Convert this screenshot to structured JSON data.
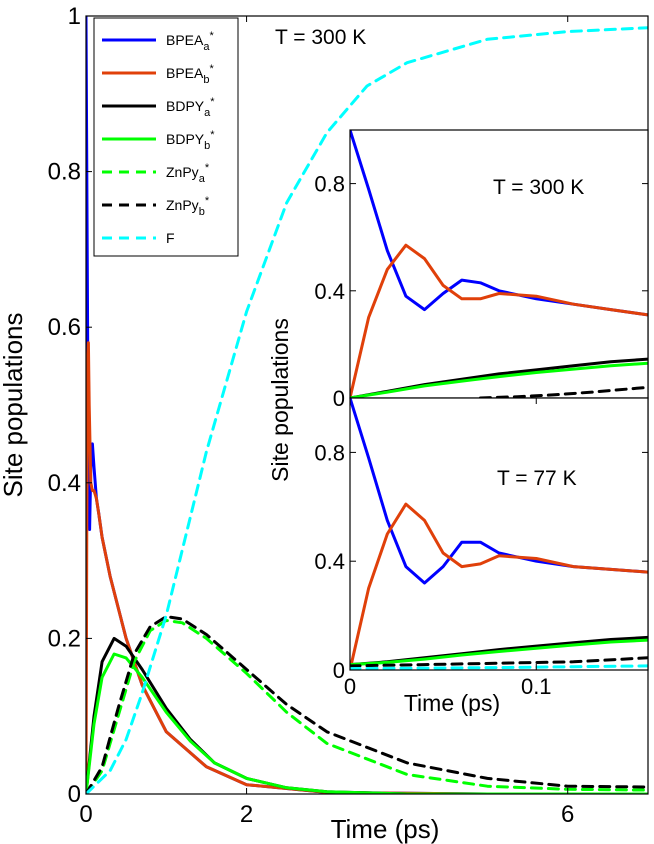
{
  "colors": {
    "BPEA_a": "#0000ff",
    "BPEA_b": "#e0400a",
    "BDPY_a": "#000000",
    "BDPY_b": "#00ff00",
    "ZnPy_a": "#00ff00",
    "ZnPy_b": "#000000",
    "F": "#00ffff"
  },
  "chart_data": [
    {
      "type": "line",
      "title": "",
      "xlabel": "Time (ps)",
      "ylabel": "Site populations",
      "xlim": [
        0,
        7
      ],
      "ylim": [
        0,
        1
      ],
      "xticks": [
        "0",
        "2",
        "6"
      ],
      "yticks": [
        "0",
        "0.2",
        "0.4",
        "0.6",
        "0.8",
        "1"
      ],
      "annotation": "T = 300 K",
      "legend_position": "top-left",
      "legend": [
        {
          "key": "BPEA_a",
          "base": "BPEA",
          "sub": "a",
          "sup": "*",
          "style": "solid"
        },
        {
          "key": "BPEA_b",
          "base": "BPEA",
          "sub": "b",
          "sup": "*",
          "style": "solid"
        },
        {
          "key": "BDPY_a",
          "base": "BDPY",
          "sub": "a",
          "sup": "*",
          "style": "solid"
        },
        {
          "key": "BDPY_b",
          "base": "BDPY",
          "sub": "b",
          "sup": "*",
          "style": "solid"
        },
        {
          "key": "ZnPy_a",
          "base": "ZnPy",
          "sub": "a",
          "sup": "*",
          "style": "dashed"
        },
        {
          "key": "ZnPy_b",
          "base": "ZnPy",
          "sub": "b",
          "sup": "*",
          "style": "dashed"
        },
        {
          "key": "F",
          "base": "F",
          "sub": "",
          "sup": "",
          "style": "dashed"
        }
      ],
      "series": [
        {
          "key": "BPEA_a",
          "x": [
            0,
            0.015,
            0.03,
            0.045,
            0.06,
            0.08,
            0.1,
            0.13,
            0.16,
            0.2,
            0.3,
            0.5,
            0.7,
            1.0,
            1.5,
            2.0,
            3.0,
            5.0,
            7.0
          ],
          "y": [
            1.0,
            0.7,
            0.4,
            0.34,
            0.42,
            0.45,
            0.42,
            0.38,
            0.36,
            0.33,
            0.28,
            0.2,
            0.14,
            0.08,
            0.035,
            0.012,
            0.002,
            0,
            0
          ]
        },
        {
          "key": "BPEA_b",
          "x": [
            0,
            0.01,
            0.02,
            0.03,
            0.04,
            0.06,
            0.08,
            0.1,
            0.13,
            0.16,
            0.2,
            0.3,
            0.5,
            0.7,
            1.0,
            1.5,
            2.0,
            3.0,
            5.0,
            7.0
          ],
          "y": [
            0,
            0.35,
            0.55,
            0.58,
            0.5,
            0.4,
            0.39,
            0.39,
            0.38,
            0.36,
            0.33,
            0.28,
            0.2,
            0.14,
            0.08,
            0.035,
            0.012,
            0.002,
            0,
            0
          ]
        },
        {
          "key": "BDPY_a",
          "x": [
            0,
            0.1,
            0.2,
            0.35,
            0.5,
            0.7,
            1.0,
            1.3,
            1.6,
            2.0,
            2.5,
            3.0,
            4.0,
            5.0,
            7.0
          ],
          "y": [
            0,
            0.1,
            0.17,
            0.2,
            0.19,
            0.16,
            0.11,
            0.07,
            0.04,
            0.02,
            0.008,
            0.003,
            0,
            0,
            0
          ]
        },
        {
          "key": "BDPY_b",
          "x": [
            0,
            0.1,
            0.2,
            0.35,
            0.5,
            0.7,
            1.0,
            1.3,
            1.6,
            2.0,
            2.5,
            3.0,
            4.0,
            5.0,
            7.0
          ],
          "y": [
            0,
            0.09,
            0.15,
            0.18,
            0.175,
            0.15,
            0.105,
            0.068,
            0.04,
            0.02,
            0.008,
            0.003,
            0,
            0,
            0
          ]
        },
        {
          "key": "ZnPy_a",
          "x": [
            0,
            0.2,
            0.4,
            0.6,
            0.8,
            1.0,
            1.2,
            1.5,
            2.0,
            2.5,
            3.0,
            4.0,
            5.0,
            6.0,
            7.0
          ],
          "y": [
            0,
            0.03,
            0.1,
            0.17,
            0.21,
            0.223,
            0.22,
            0.2,
            0.155,
            0.105,
            0.065,
            0.025,
            0.01,
            0.006,
            0.005
          ]
        },
        {
          "key": "ZnPy_b",
          "x": [
            0,
            0.2,
            0.4,
            0.6,
            0.8,
            1.0,
            1.2,
            1.5,
            2.0,
            2.5,
            3.0,
            4.0,
            5.0,
            6.0,
            7.0
          ],
          "y": [
            0,
            0.035,
            0.11,
            0.18,
            0.215,
            0.228,
            0.225,
            0.205,
            0.16,
            0.115,
            0.08,
            0.04,
            0.02,
            0.01,
            0.009
          ]
        },
        {
          "key": "F",
          "x": [
            0,
            0.3,
            0.5,
            0.7,
            1.0,
            1.5,
            2.0,
            2.5,
            3.0,
            3.5,
            4.0,
            5.0,
            6.0,
            7.0
          ],
          "y": [
            0,
            0.03,
            0.07,
            0.13,
            0.23,
            0.44,
            0.62,
            0.76,
            0.85,
            0.91,
            0.94,
            0.97,
            0.98,
            0.985
          ]
        }
      ]
    },
    {
      "type": "line",
      "title": "",
      "xlabel": "",
      "ylabel": "",
      "xlim": [
        0,
        0.16
      ],
      "ylim": [
        0,
        1.0
      ],
      "xticks": [],
      "yticks": [
        "0",
        "0.4",
        "0.8"
      ],
      "annotation": "T = 300 K",
      "series": [
        {
          "key": "BPEA_a",
          "x": [
            0,
            0.01,
            0.02,
            0.03,
            0.04,
            0.05,
            0.06,
            0.07,
            0.08,
            0.1,
            0.12,
            0.14,
            0.16
          ],
          "y": [
            1.0,
            0.78,
            0.55,
            0.38,
            0.33,
            0.39,
            0.44,
            0.43,
            0.4,
            0.37,
            0.35,
            0.33,
            0.31
          ]
        },
        {
          "key": "BPEA_b",
          "x": [
            0,
            0.01,
            0.02,
            0.03,
            0.04,
            0.05,
            0.06,
            0.07,
            0.08,
            0.1,
            0.12,
            0.14,
            0.16
          ],
          "y": [
            0,
            0.3,
            0.48,
            0.57,
            0.52,
            0.42,
            0.37,
            0.37,
            0.39,
            0.38,
            0.35,
            0.33,
            0.31
          ]
        },
        {
          "key": "BDPY_a",
          "x": [
            0,
            0.02,
            0.04,
            0.06,
            0.08,
            0.1,
            0.12,
            0.14,
            0.16
          ],
          "y": [
            0,
            0.025,
            0.05,
            0.07,
            0.09,
            0.105,
            0.12,
            0.135,
            0.145
          ]
        },
        {
          "key": "BDPY_b",
          "x": [
            0,
            0.02,
            0.04,
            0.06,
            0.08,
            0.1,
            0.12,
            0.14,
            0.16
          ],
          "y": [
            0,
            0.022,
            0.045,
            0.063,
            0.08,
            0.095,
            0.108,
            0.12,
            0.13
          ]
        },
        {
          "key": "ZnPy_b",
          "x": [
            0.07,
            0.09,
            0.11,
            0.13,
            0.15,
            0.16
          ],
          "y": [
            0,
            0.005,
            0.012,
            0.022,
            0.034,
            0.04
          ]
        }
      ]
    },
    {
      "type": "line",
      "title": "",
      "xlabel": "Time (ps)",
      "ylabel": "",
      "xlim": [
        0,
        0.16
      ],
      "ylim": [
        0,
        1.0
      ],
      "xticks": [
        "0",
        "0.1"
      ],
      "yticks": [
        "0",
        "0.4",
        "0.8"
      ],
      "annotation": "T = 77 K",
      "series": [
        {
          "key": "BPEA_a",
          "x": [
            0,
            0.01,
            0.02,
            0.03,
            0.04,
            0.05,
            0.06,
            0.07,
            0.08,
            0.1,
            0.12,
            0.14,
            0.16
          ],
          "y": [
            1.0,
            0.78,
            0.55,
            0.38,
            0.32,
            0.38,
            0.47,
            0.47,
            0.43,
            0.4,
            0.38,
            0.37,
            0.36
          ]
        },
        {
          "key": "BPEA_b",
          "x": [
            0,
            0.01,
            0.02,
            0.03,
            0.04,
            0.05,
            0.06,
            0.07,
            0.08,
            0.1,
            0.12,
            0.14,
            0.16
          ],
          "y": [
            0,
            0.3,
            0.5,
            0.61,
            0.55,
            0.43,
            0.38,
            0.39,
            0.42,
            0.41,
            0.38,
            0.37,
            0.36
          ]
        },
        {
          "key": "BDPY_a",
          "x": [
            0,
            0.02,
            0.04,
            0.06,
            0.08,
            0.1,
            0.12,
            0.14,
            0.16
          ],
          "y": [
            0.02,
            0.03,
            0.045,
            0.06,
            0.075,
            0.088,
            0.1,
            0.112,
            0.12
          ]
        },
        {
          "key": "BDPY_b",
          "x": [
            0,
            0.02,
            0.04,
            0.06,
            0.08,
            0.1,
            0.12,
            0.14,
            0.16
          ],
          "y": [
            0.02,
            0.028,
            0.04,
            0.055,
            0.068,
            0.08,
            0.092,
            0.103,
            0.11
          ]
        },
        {
          "key": "ZnPy_b",
          "x": [
            0,
            0.04,
            0.08,
            0.12,
            0.16
          ],
          "y": [
            0.015,
            0.02,
            0.025,
            0.03,
            0.045
          ]
        },
        {
          "key": "F",
          "x": [
            0,
            0.04,
            0.08,
            0.12,
            0.16
          ],
          "y": [
            0.005,
            0.007,
            0.009,
            0.012,
            0.015
          ]
        }
      ]
    }
  ]
}
